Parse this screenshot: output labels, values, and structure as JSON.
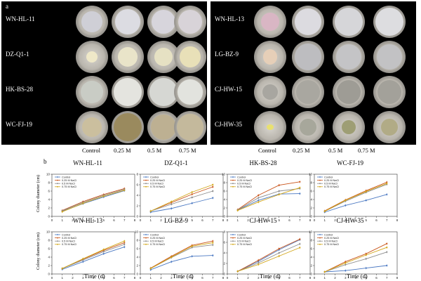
{
  "figure": {
    "panel_a_label": "a",
    "panel_b_label": "b",
    "conditions": [
      "Control",
      "0.25 M",
      "0.5 M",
      "0.75 M"
    ],
    "left_strains": [
      "WN-HL-11",
      "DZ-Q1-1",
      "HK-BS-28",
      "WC-FJ-19"
    ],
    "right_strains": [
      "WN-HL-13",
      "LG-BZ-9",
      "CJ-HW-15",
      "CJ-HW-35"
    ],
    "y_axis_label": "Colony diameter (cm)",
    "x_axis_label": "Time (d)",
    "legend": [
      "Control",
      "0.25 M NaCl",
      "0.5  M NaCl",
      "0.75 M NaCl"
    ],
    "series_colors": [
      "#4a78c2",
      "#c9541a",
      "#8c8c8c",
      "#d2a516"
    ]
  },
  "chart_data": [
    {
      "type": "line",
      "title": "WN-HL-11",
      "xlabel": "Time (d)",
      "ylabel": "Colony diameter (cm)",
      "x": [
        1,
        3,
        5,
        7
      ],
      "xlim": [
        0,
        8
      ],
      "ylim": [
        0,
        10
      ],
      "xticks": [
        0,
        1,
        2,
        3,
        4,
        5,
        6,
        7,
        8
      ],
      "yticks": [
        0,
        2,
        4,
        6,
        8,
        10
      ],
      "series": [
        {
          "name": "Control",
          "values": [
            1.2,
            3.0,
            4.6,
            6.1
          ]
        },
        {
          "name": "0.25 M NaCl",
          "values": [
            1.4,
            3.5,
            5.2,
            6.6
          ]
        },
        {
          "name": "0.5  M NaCl",
          "values": [
            1.3,
            3.3,
            5.0,
            6.4
          ]
        },
        {
          "name": "0.75 M NaCl",
          "values": [
            1.1,
            3.1,
            4.8,
            6.2
          ]
        }
      ]
    },
    {
      "type": "line",
      "title": "DZ-Q1-1",
      "xlabel": "Time (d)",
      "ylabel": "Colony diameter (cm)",
      "x": [
        1,
        3,
        5,
        7
      ],
      "xlim": [
        0,
        8
      ],
      "ylim": [
        0,
        8
      ],
      "xticks": [
        0,
        1,
        2,
        3,
        4,
        5,
        6,
        7,
        8
      ],
      "yticks": [
        0,
        2,
        4,
        6,
        8
      ],
      "series": [
        {
          "name": "Control",
          "values": [
            0.8,
            1.5,
            2.5,
            3.5
          ]
        },
        {
          "name": "0.25 M NaCl",
          "values": [
            1.0,
            2.6,
            4.2,
            5.6
          ]
        },
        {
          "name": "0.5  M NaCl",
          "values": [
            1.0,
            2.3,
            3.6,
            4.8
          ]
        },
        {
          "name": "0.75 M NaCl",
          "values": [
            1.0,
            2.8,
            4.6,
            6.0
          ]
        }
      ]
    },
    {
      "type": "line",
      "title": "HK-BS-28",
      "xlabel": "Time (d)",
      "ylabel": "Colony diameter (cm)",
      "x": [
        1,
        3,
        5,
        7
      ],
      "xlim": [
        0,
        8
      ],
      "ylim": [
        0,
        10
      ],
      "xticks": [
        0,
        1,
        2,
        3,
        4,
        5,
        6,
        7,
        8
      ],
      "yticks": [
        0,
        2,
        4,
        6,
        8,
        10
      ],
      "series": [
        {
          "name": "Control",
          "values": [
            1.5,
            3.8,
            5.3,
            5.4
          ]
        },
        {
          "name": "0.25 M NaCl",
          "values": [
            1.6,
            5.0,
            7.4,
            8.2
          ]
        },
        {
          "name": "0.5  M NaCl",
          "values": [
            1.5,
            4.4,
            6.0,
            6.6
          ]
        },
        {
          "name": "0.75 M NaCl",
          "values": [
            1.4,
            3.4,
            5.2,
            6.8
          ]
        }
      ]
    },
    {
      "type": "line",
      "title": "WC-FJ-19",
      "xlabel": "Time (d)",
      "ylabel": "Colony diameter (cm)",
      "x": [
        1,
        3,
        5,
        7
      ],
      "xlim": [
        0,
        8
      ],
      "ylim": [
        0,
        10
      ],
      "xticks": [
        0,
        1,
        2,
        3,
        4,
        5,
        6,
        7,
        8
      ],
      "yticks": [
        0,
        2,
        4,
        6,
        8,
        10
      ],
      "series": [
        {
          "name": "Control",
          "values": [
            1.0,
            2.6,
            3.8,
            5.2
          ]
        },
        {
          "name": "0.25 M NaCl",
          "values": [
            1.3,
            3.9,
            6.1,
            8.1
          ]
        },
        {
          "name": "0.5  M NaCl",
          "values": [
            1.2,
            3.6,
            5.7,
            7.6
          ]
        },
        {
          "name": "0.75 M NaCl",
          "values": [
            1.2,
            3.8,
            5.9,
            7.8
          ]
        }
      ]
    },
    {
      "type": "line",
      "title": "WN-HL-13",
      "xlabel": "Time (d)",
      "ylabel": "Colony diameter (cm)",
      "x": [
        1,
        3,
        5,
        7
      ],
      "xlim": [
        0,
        8
      ],
      "ylim": [
        0,
        10
      ],
      "xticks": [
        0,
        1,
        2,
        3,
        4,
        5,
        6,
        7,
        8
      ],
      "yticks": [
        0,
        2,
        4,
        6,
        8,
        10
      ],
      "series": [
        {
          "name": "Control",
          "values": [
            1.1,
            2.9,
            4.8,
            6.4
          ]
        },
        {
          "name": "0.25 M NaCl",
          "values": [
            1.3,
            3.5,
            5.6,
            7.4
          ]
        },
        {
          "name": "0.5  M NaCl",
          "values": [
            1.3,
            3.3,
            5.3,
            7.0
          ]
        },
        {
          "name": "0.75 M NaCl",
          "values": [
            1.3,
            3.6,
            5.8,
            7.8
          ]
        }
      ]
    },
    {
      "type": "line",
      "title": "LG-BZ-9",
      "xlabel": "Time (d)",
      "ylabel": "Colony diameter (cm)",
      "x": [
        1,
        3,
        5,
        7
      ],
      "xlim": [
        0,
        8
      ],
      "ylim": [
        0,
        10
      ],
      "xticks": [
        0,
        1,
        2,
        3,
        4,
        5,
        6,
        7,
        8
      ],
      "yticks": [
        0,
        2,
        4,
        6,
        8,
        10
      ],
      "series": [
        {
          "name": "Control",
          "values": [
            1.0,
            2.9,
            4.2,
            4.4
          ]
        },
        {
          "name": "0.25 M NaCl",
          "values": [
            1.4,
            4.2,
            6.8,
            7.8
          ]
        },
        {
          "name": "0.5  M NaCl",
          "values": [
            1.3,
            3.9,
            6.3,
            6.9
          ]
        },
        {
          "name": "0.75 M NaCl",
          "values": [
            1.3,
            4.0,
            6.6,
            7.4
          ]
        }
      ]
    },
    {
      "type": "line",
      "title": "CJ-HW-15",
      "xlabel": "Time (d)",
      "ylabel": "Colony diameter (cm)",
      "x": [
        1,
        3,
        5,
        7
      ],
      "xlim": [
        0,
        8
      ],
      "ylim": [
        0,
        8
      ],
      "xticks": [
        0,
        1,
        2,
        3,
        4,
        5,
        6,
        7,
        8
      ],
      "yticks": [
        0,
        2,
        4,
        6,
        8
      ],
      "series": [
        {
          "name": "Control",
          "values": [
            0.5,
            2.4,
            4.6,
            6.5
          ]
        },
        {
          "name": "0.25 M NaCl",
          "values": [
            0.5,
            2.6,
            4.8,
            6.6
          ]
        },
        {
          "name": "0.5  M NaCl",
          "values": [
            0.5,
            2.1,
            4.0,
            5.7
          ]
        },
        {
          "name": "0.75 M NaCl",
          "values": [
            0.5,
            1.8,
            3.4,
            5.0
          ]
        }
      ]
    },
    {
      "type": "line",
      "title": "CJ-HW-35",
      "xlabel": "Time (d)",
      "ylabel": "Colony diameter (cm)",
      "x": [
        1,
        3,
        5,
        7
      ],
      "xlim": [
        0,
        8
      ],
      "ylim": [
        0,
        10
      ],
      "xticks": [
        0,
        1,
        2,
        3,
        4,
        5,
        6,
        7,
        8
      ],
      "yticks": [
        0,
        2,
        4,
        6,
        8,
        10
      ],
      "series": [
        {
          "name": "Control",
          "values": [
            0.5,
            0.8,
            1.4,
            2.0
          ]
        },
        {
          "name": "0.25 M NaCl",
          "values": [
            0.5,
            2.9,
            4.8,
            7.2
          ]
        },
        {
          "name": "0.5  M NaCl",
          "values": [
            0.5,
            2.2,
            3.6,
            5.2
          ]
        },
        {
          "name": "0.75 M NaCl",
          "values": [
            0.5,
            2.6,
            4.5,
            6.3
          ]
        }
      ]
    }
  ]
}
